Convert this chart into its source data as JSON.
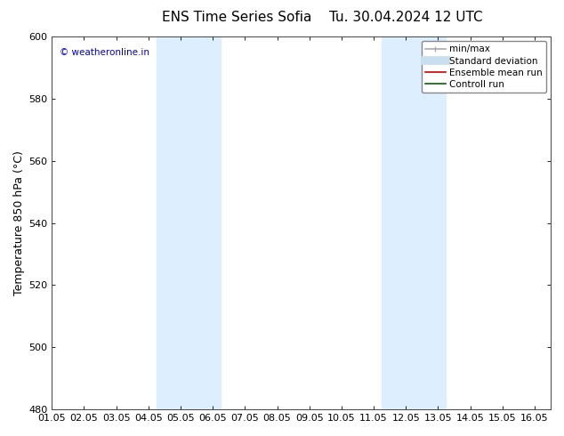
{
  "title": "ENS Time Series Sofia",
  "subtitle": "Tu. 30.04.2024 12 UTC",
  "ylabel": "Temperature 850 hPa (°C)",
  "ylim": [
    480,
    600
  ],
  "yticks": [
    480,
    500,
    520,
    540,
    560,
    580,
    600
  ],
  "xlim": [
    0.0,
    15.5
  ],
  "xtick_labels": [
    "01.05",
    "02.05",
    "03.05",
    "04.05",
    "05.05",
    "06.05",
    "07.05",
    "08.05",
    "09.05",
    "10.05",
    "11.05",
    "12.05",
    "13.05",
    "14.05",
    "15.05",
    "16.05"
  ],
  "xtick_positions": [
    0,
    1,
    2,
    3,
    4,
    5,
    6,
    7,
    8,
    9,
    10,
    11,
    12,
    13,
    14,
    15
  ],
  "shaded_bands": [
    {
      "x_start": 3.25,
      "x_end": 5.25,
      "color": "#ddeeff"
    },
    {
      "x_start": 10.25,
      "x_end": 12.25,
      "color": "#ddeeff"
    }
  ],
  "watermark_text": "© weatheronline.in",
  "watermark_color": "#0000cc",
  "background_color": "#ffffff",
  "plot_bg_color": "#ffffff",
  "border_color": "#444444",
  "legend_entries": [
    {
      "label": "min/max",
      "color": "#aaaaaa",
      "lw": 1.2
    },
    {
      "label": "Standard deviation",
      "color": "#c8dff0",
      "lw": 7
    },
    {
      "label": "Ensemble mean run",
      "color": "#cc0000",
      "lw": 1.2
    },
    {
      "label": "Controll run",
      "color": "#006600",
      "lw": 1.2
    }
  ],
  "title_fontsize": 11,
  "axis_label_fontsize": 9,
  "tick_fontsize": 8,
  "legend_fontsize": 7.5
}
